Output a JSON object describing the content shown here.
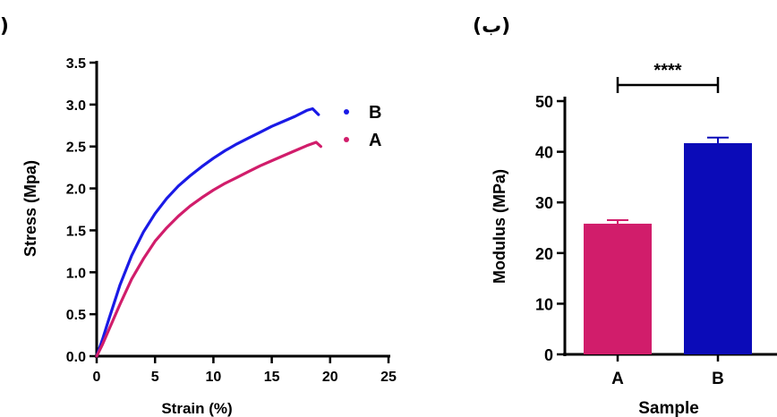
{
  "panels": {
    "left_label": "(الف)",
    "right_label": "(ب)"
  },
  "chart_data": [
    {
      "type": "line",
      "xlabel": "Strain (%)",
      "ylabel": "Stress (Mpa)",
      "xlim": [
        0,
        25
      ],
      "ylim": [
        0,
        3.5
      ],
      "x_ticks": [
        "0",
        "5",
        "10",
        "15",
        "20",
        "25"
      ],
      "y_ticks": [
        "0.0",
        "0.5",
        "1.0",
        "1.5",
        "2.0",
        "2.5",
        "3.0",
        "3.5"
      ],
      "legend_position": "right",
      "grid": false,
      "series": [
        {
          "name": "B",
          "color": "#1a1ae6",
          "x": [
            0,
            0.5,
            1,
            2,
            3,
            4,
            5,
            6,
            7,
            8,
            9,
            10,
            11,
            12,
            13,
            14,
            15,
            16,
            17,
            18,
            18.5,
            19
          ],
          "y": [
            0,
            0.2,
            0.42,
            0.85,
            1.2,
            1.48,
            1.7,
            1.88,
            2.03,
            2.15,
            2.26,
            2.36,
            2.45,
            2.53,
            2.6,
            2.67,
            2.74,
            2.8,
            2.86,
            2.93,
            2.95,
            2.88
          ]
        },
        {
          "name": "A",
          "color": "#d11d6b",
          "x": [
            0,
            0.5,
            1,
            2,
            3,
            4,
            5,
            6,
            7,
            8,
            9,
            10,
            11,
            12,
            13,
            14,
            15,
            16,
            17,
            18,
            18.8,
            19.2
          ],
          "y": [
            0,
            0.14,
            0.3,
            0.62,
            0.92,
            1.16,
            1.37,
            1.53,
            1.67,
            1.79,
            1.89,
            1.98,
            2.06,
            2.13,
            2.2,
            2.27,
            2.33,
            2.39,
            2.45,
            2.51,
            2.55,
            2.5
          ]
        }
      ]
    },
    {
      "type": "bar",
      "categories": [
        "A",
        "B"
      ],
      "values": [
        25.8,
        41.7
      ],
      "errors": [
        0.7,
        1.1
      ],
      "colors": [
        "#d11d6b",
        "#0b0bb8"
      ],
      "xlabel": "Sample",
      "ylabel": "Modulus (MPa)",
      "ylim": [
        0,
        50
      ],
      "y_ticks": [
        "0",
        "10",
        "20",
        "30",
        "40",
        "50"
      ],
      "significance": "****",
      "grid": false
    }
  ]
}
